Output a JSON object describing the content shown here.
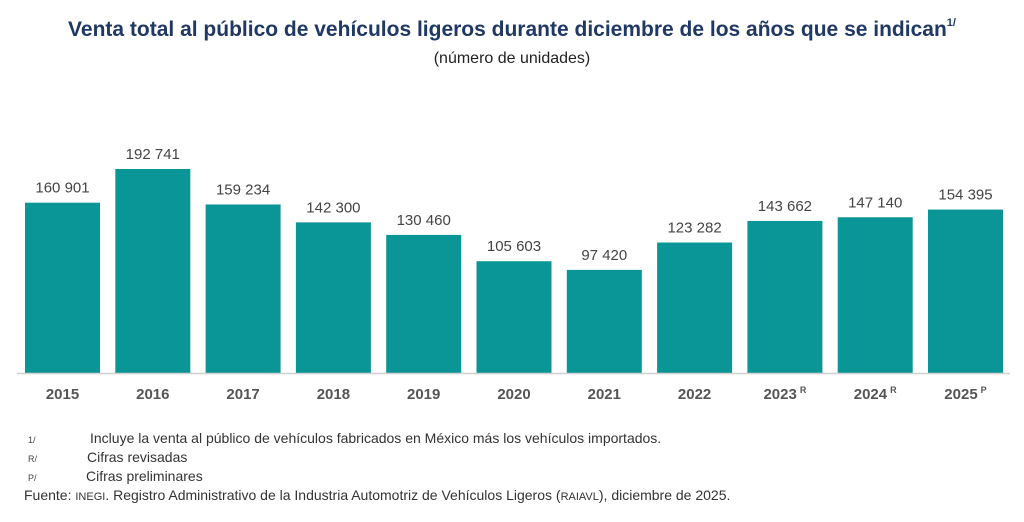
{
  "title": "Venta total al público de vehículos ligeros durante diciembre de los años que se indican",
  "title_footnote": "1/",
  "subtitle": "(número de unidades)",
  "chart_data": {
    "type": "bar",
    "title": "Venta total al público de vehículos ligeros durante diciembre de los años que se indican",
    "subtitle": "(número de unidades)",
    "xlabel": "",
    "ylabel": "",
    "categories": [
      "2015",
      "2016",
      "2017",
      "2018",
      "2019",
      "2020",
      "2021",
      "2022",
      "2023",
      "2024",
      "2025"
    ],
    "category_marks": [
      "",
      "",
      "",
      "",
      "",
      "",
      "",
      "",
      "R",
      "R",
      "P"
    ],
    "values": [
      160901,
      192741,
      159234,
      142300,
      130460,
      105603,
      97420,
      123282,
      143662,
      147140,
      154395
    ],
    "value_labels": [
      "160 901",
      "192 741",
      "159 234",
      "142 300",
      "130 460",
      "105 603",
      "97 420",
      "123 282",
      "143 662",
      "147 140",
      "154 395"
    ],
    "ylim": [
      0,
      192741
    ],
    "grid": false,
    "legend": "none",
    "bar_color": "#0a9696"
  },
  "notes": [
    {
      "mark": "1/",
      "text": "Incluye la venta al público de vehículos fabricados en México más los vehículos importados."
    },
    {
      "mark": "R/",
      "text": "Cifras revisadas"
    },
    {
      "mark": "P/",
      "text": "Cifras preliminares"
    }
  ],
  "source": {
    "prefix": "Fuente: ",
    "org": "INEGI",
    "text1": ". Registro Administrativo de la Industria Automotriz de Vehículos Ligeros (",
    "acronym": "RAIAVL",
    "text2": "), diciembre de 2025."
  }
}
